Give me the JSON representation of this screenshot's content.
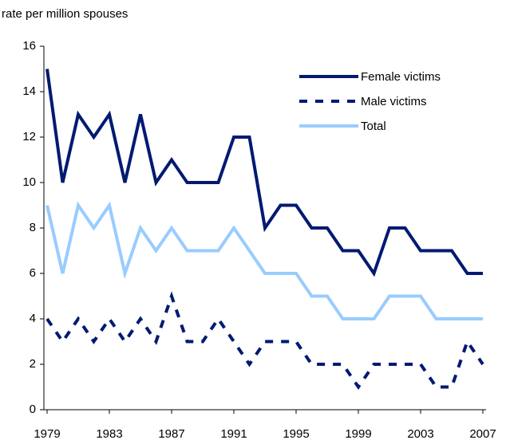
{
  "chart_data": {
    "type": "line",
    "ylabel": "rate per million spouses",
    "x": [
      1979,
      1980,
      1981,
      1982,
      1983,
      1984,
      1985,
      1986,
      1987,
      1988,
      1989,
      1990,
      1991,
      1992,
      1993,
      1994,
      1995,
      1996,
      1997,
      1998,
      1999,
      2000,
      2001,
      2002,
      2003,
      2004,
      2005,
      2006,
      2007
    ],
    "series": [
      {
        "name": "Female victims",
        "color": "#001a72",
        "line_style": "solid",
        "values": [
          15,
          10,
          13,
          12,
          13,
          10,
          13,
          10,
          11,
          10,
          10,
          10,
          12,
          12,
          8,
          9,
          9,
          8,
          8,
          7,
          7,
          6,
          8,
          8,
          7,
          7,
          7,
          6,
          6
        ]
      },
      {
        "name": "Male victims",
        "color": "#001a72",
        "line_style": "dashed",
        "values": [
          4,
          3,
          4,
          3,
          4,
          3,
          4,
          3,
          5,
          3,
          3,
          4,
          3,
          2,
          3,
          3,
          3,
          2,
          2,
          2,
          1,
          2,
          2,
          2,
          2,
          1,
          1,
          3,
          2
        ]
      },
      {
        "name": "Total",
        "color": "#99ccff",
        "line_style": "solid",
        "values": [
          9,
          6,
          9,
          8,
          9,
          6,
          8,
          7,
          8,
          7,
          7,
          7,
          8,
          7,
          6,
          6,
          6,
          5,
          5,
          4,
          4,
          4,
          5,
          5,
          5,
          4,
          4,
          4,
          4
        ]
      }
    ],
    "xlim": [
      1979,
      2007
    ],
    "xticks": [
      1979,
      1983,
      1987,
      1991,
      1995,
      1999,
      2003,
      2007
    ],
    "ylim": [
      0,
      16
    ],
    "yticks": [
      0,
      2,
      4,
      6,
      8,
      10,
      12,
      14,
      16
    ],
    "grid": false,
    "legend": "top-right"
  }
}
